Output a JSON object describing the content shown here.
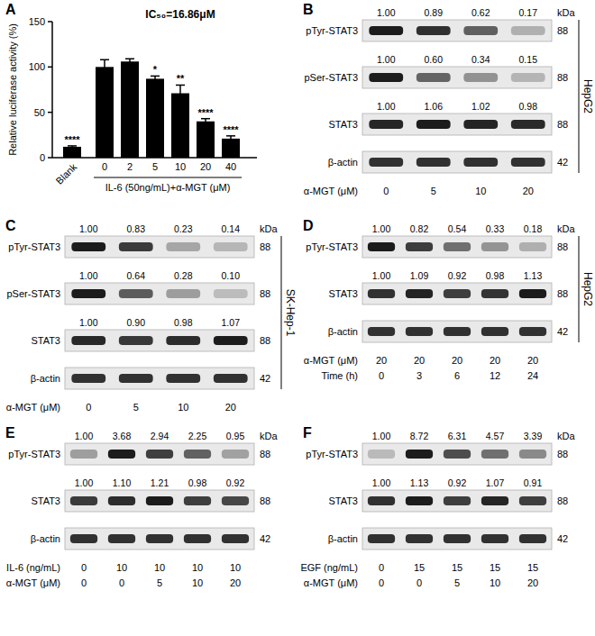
{
  "chart_data": {
    "type": "bar",
    "panel_label": "A",
    "title": "IC₅₀=16.86μM",
    "x_label": "IL-6 (50ng/mL)+α-MGT (μM)",
    "y_label": "Relative luciferase activity (%)",
    "categories": [
      "Blank",
      "0",
      "2",
      "5",
      "10",
      "20",
      "40"
    ],
    "values": [
      12,
      100,
      106,
      87,
      71,
      40,
      21
    ],
    "errors": [
      1,
      8,
      3,
      3,
      9,
      3,
      3
    ],
    "annotations": [
      "****",
      null,
      null,
      "*",
      "**",
      "****",
      "****"
    ],
    "color": "#000000",
    "ylim": [
      0,
      150
    ],
    "yticks": [
      0,
      50,
      100,
      150
    ]
  },
  "blots": [
    {
      "label": "B",
      "cell_line": "HepG2",
      "kda_header": "kDa",
      "rows": [
        {
          "name": "pTyr-STAT3",
          "kda": 88,
          "values": [
            1.0,
            0.89,
            0.62,
            0.17
          ],
          "value_labels": [
            "1.00",
            "0.89",
            "0.62",
            "0.17"
          ]
        },
        {
          "name": "pSer-STAT3",
          "kda": 88,
          "values": [
            1.0,
            0.6,
            0.34,
            0.15
          ],
          "value_labels": [
            "1.00",
            "0.60",
            "0.34",
            "0.15"
          ]
        },
        {
          "name": "STAT3",
          "kda": 88,
          "values": [
            1.0,
            1.06,
            1.02,
            0.98
          ],
          "value_labels": [
            "1.00",
            "1.06",
            "1.02",
            "0.98"
          ]
        },
        {
          "name": "β-actin",
          "kda": 42
        }
      ],
      "conditions": [
        {
          "name": "α-MGT (μM)",
          "values": [
            0,
            5,
            10,
            20
          ]
        }
      ]
    },
    {
      "label": "C",
      "cell_line": "SK-Hep-1",
      "kda_header": "kDa",
      "rows": [
        {
          "name": "pTyr-STAT3",
          "kda": 88,
          "values": [
            1.0,
            0.83,
            0.23,
            0.14
          ],
          "value_labels": [
            "1.00",
            "0.83",
            "0.23",
            "0.14"
          ]
        },
        {
          "name": "pSer-STAT3",
          "kda": 88,
          "values": [
            1.0,
            0.64,
            0.28,
            0.1
          ],
          "value_labels": [
            "1.00",
            "0.64",
            "0.28",
            "0.10"
          ]
        },
        {
          "name": "STAT3",
          "kda": 88,
          "values": [
            1.0,
            0.9,
            0.98,
            1.07
          ],
          "value_labels": [
            "1.00",
            "0.90",
            "0.98",
            "1.07"
          ]
        },
        {
          "name": "β-actin",
          "kda": 42
        }
      ],
      "conditions": [
        {
          "name": "α-MGT (μM)",
          "values": [
            0,
            5,
            10,
            20
          ]
        }
      ]
    },
    {
      "label": "D",
      "cell_line": "HepG2",
      "kda_header": "kDa",
      "rows": [
        {
          "name": "pTyr-STAT3",
          "kda": 88,
          "values": [
            1.0,
            0.82,
            0.54,
            0.33,
            0.18
          ],
          "value_labels": [
            "1.00",
            "0.82",
            "0.54",
            "0.33",
            "0.18"
          ]
        },
        {
          "name": "STAT3",
          "kda": 88,
          "values": [
            1.0,
            1.09,
            0.92,
            0.98,
            1.13
          ],
          "value_labels": [
            "1.00",
            "1.09",
            "0.92",
            "0.98",
            "1.13"
          ]
        },
        {
          "name": "β-actin",
          "kda": 42
        }
      ],
      "conditions": [
        {
          "name": "α-MGT (μM)",
          "values": [
            20,
            20,
            20,
            20,
            20
          ]
        },
        {
          "name": "Time (h)",
          "values": [
            0,
            3,
            6,
            12,
            24
          ]
        }
      ]
    },
    {
      "label": "E",
      "kda_header": "kDa",
      "rows": [
        {
          "name": "pTyr-STAT3",
          "kda": 88,
          "values": [
            1.0,
            3.68,
            2.94,
            2.25,
            0.95
          ],
          "value_labels": [
            "1.00",
            "3.68",
            "2.94",
            "2.25",
            "0.95"
          ]
        },
        {
          "name": "STAT3",
          "kda": 88,
          "values": [
            1.0,
            1.1,
            1.21,
            0.98,
            0.92
          ],
          "value_labels": [
            "1.00",
            "1.10",
            "1.21",
            "0.98",
            "0.92"
          ]
        },
        {
          "name": "β-actin",
          "kda": 42
        }
      ],
      "conditions": [
        {
          "name": "IL-6 (ng/mL)",
          "values": [
            0,
            10,
            10,
            10,
            10
          ]
        },
        {
          "name": "α-MGT (μM)",
          "values": [
            0,
            0,
            5,
            10,
            20
          ]
        }
      ]
    },
    {
      "label": "F",
      "kda_header": "kDa",
      "rows": [
        {
          "name": "pTyr-STAT3",
          "kda": 88,
          "values": [
            1.0,
            8.72,
            6.31,
            4.57,
            3.39
          ],
          "value_labels": [
            "1.00",
            "8.72",
            "6.31",
            "4.57",
            "3.39"
          ]
        },
        {
          "name": "STAT3",
          "kda": 88,
          "values": [
            1.0,
            1.13,
            0.92,
            1.07,
            0.91
          ],
          "value_labels": [
            "1.00",
            "1.13",
            "0.92",
            "1.07",
            "0.91"
          ]
        },
        {
          "name": "β-actin",
          "kda": 42
        }
      ],
      "conditions": [
        {
          "name": "EGF (ng/mL)",
          "values": [
            0,
            15,
            15,
            15,
            15
          ]
        },
        {
          "name": "α-MGT (μM)",
          "values": [
            0,
            0,
            5,
            10,
            20
          ]
        }
      ]
    }
  ]
}
